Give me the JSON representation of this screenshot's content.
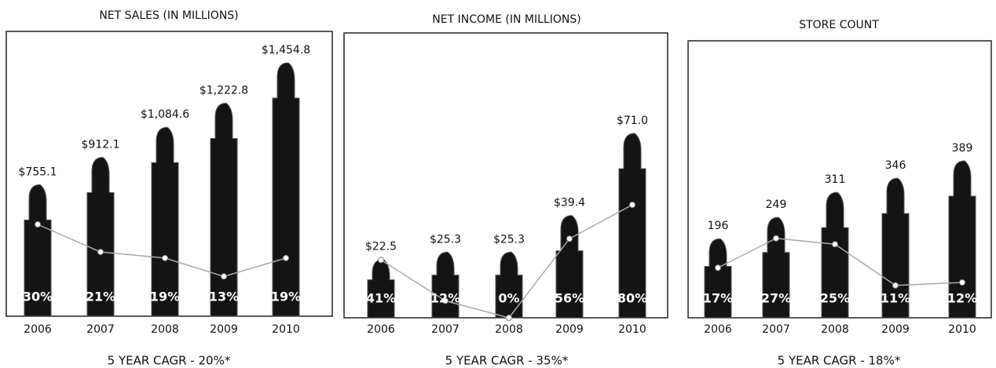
{
  "chart_data": [
    {
      "type": "bar",
      "title": "NET SALES (IN MILLIONS)",
      "categories": [
        "2006",
        "2007",
        "2008",
        "2009",
        "2010"
      ],
      "values": [
        755.1,
        912.1,
        1084.6,
        1222.8,
        1454.8
      ],
      "value_labels": [
        "$755.1",
        "$912.1",
        "$1,084.6",
        "$1,222.8",
        "$1,454.8"
      ],
      "growth": {
        "values": [
          30,
          21,
          19,
          13,
          19
        ],
        "value_labels": [
          "30%",
          "21%",
          "19%",
          "13%",
          "19%"
        ]
      },
      "note": "5 YEAR CAGR - 20%*"
    },
    {
      "type": "bar",
      "title": "NET INCOME (IN MILLIONS)",
      "categories": [
        "2006",
        "2007",
        "2008",
        "2009",
        "2010"
      ],
      "values": [
        22.5,
        25.3,
        25.3,
        39.4,
        71.0
      ],
      "value_labels": [
        "$22.5",
        "$25.3",
        "$25.3",
        "$39.4",
        "$71.0"
      ],
      "growth": {
        "values": [
          41,
          12,
          0,
          56,
          80
        ],
        "value_labels": [
          "41%",
          "12%",
          "0%",
          "56%",
          "80%"
        ]
      },
      "note": "5 YEAR CAGR - 35%*"
    },
    {
      "type": "bar",
      "title": "STORE COUNT",
      "categories": [
        "2006",
        "2007",
        "2008",
        "2009",
        "2010"
      ],
      "values": [
        196,
        249,
        311,
        346,
        389
      ],
      "growth": {
        "values": [
          17,
          27,
          25,
          11,
          12
        ],
        "value_labels": [
          "17%",
          "27%",
          "25%",
          "11%",
          "12%"
        ]
      },
      "note": "5 YEAR CAGR - 18%*"
    }
  ]
}
